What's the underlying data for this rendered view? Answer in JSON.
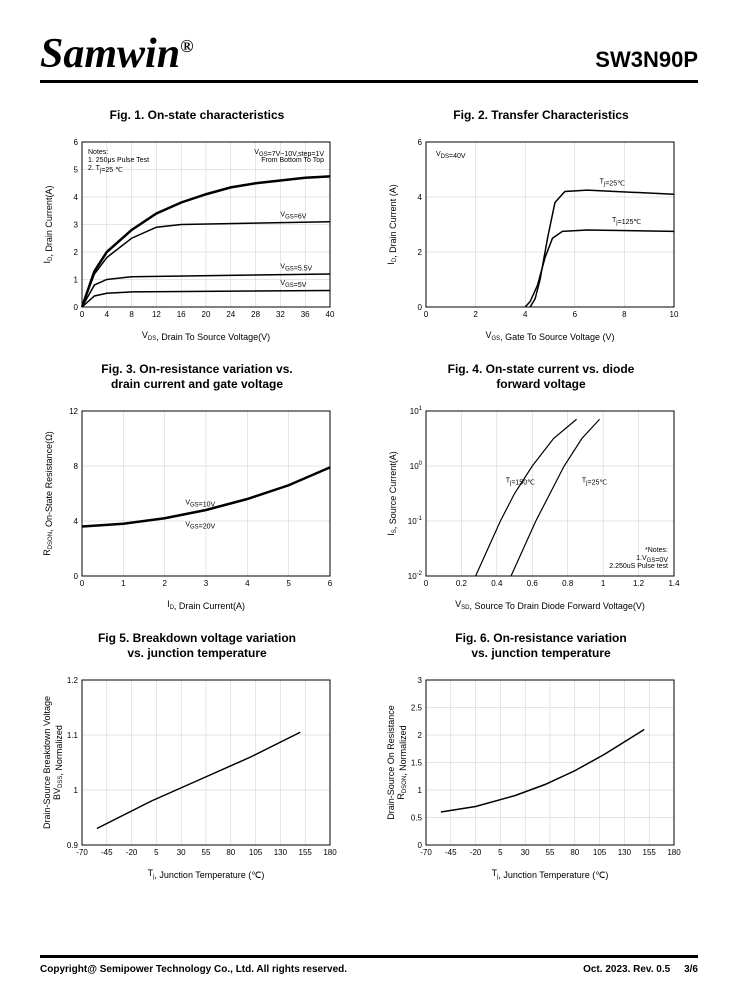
{
  "header": {
    "brand": "Samwin",
    "reg": "®",
    "part": "SW3N90P"
  },
  "footer": {
    "left": "Copyright@ Semipower Technology Co., Ltd. All rights reserved.",
    "date": "Oct. 2023. Rev. 0.5",
    "page": "3/6"
  },
  "figs": [
    {
      "title": "Fig. 1. On-state characteristics",
      "xlabel": "V_DS, Drain To Source Voltage(V)",
      "ylabel": "I_D, Drain Current(A)",
      "xlim": [
        0,
        40
      ],
      "ylim": [
        0,
        6
      ],
      "xticks": [
        0,
        4,
        8,
        12,
        16,
        20,
        24,
        28,
        32,
        36,
        40
      ],
      "yticks": [
        0,
        1,
        2,
        3,
        4,
        5,
        6
      ],
      "grid_color": "#cccccc",
      "border_color": "#000000",
      "bg": "#ffffff",
      "line_width": 1.5,
      "notes": "Notes:\n1. 250μs Pulse Test\n2. T_j=25 ℃",
      "ann_top": "V_GS=7V~10V,step=1V\nFrom Bottom To Top",
      "series": [
        {
          "label": "V_GS=5V",
          "color": "#000",
          "data": [
            [
              0,
              0
            ],
            [
              2,
              0.4
            ],
            [
              4,
              0.5
            ],
            [
              8,
              0.55
            ],
            [
              40,
              0.6
            ]
          ]
        },
        {
          "label": "V_GS=5.5V",
          "color": "#000",
          "data": [
            [
              0,
              0
            ],
            [
              2,
              0.8
            ],
            [
              4,
              1.0
            ],
            [
              8,
              1.1
            ],
            [
              40,
              1.2
            ]
          ]
        },
        {
          "label": "V_GS=6V",
          "color": "#000",
          "data": [
            [
              0,
              0
            ],
            [
              2,
              1.2
            ],
            [
              4,
              1.8
            ],
            [
              8,
              2.5
            ],
            [
              12,
              2.9
            ],
            [
              16,
              3.0
            ],
            [
              40,
              3.1
            ]
          ]
        },
        {
          "label": "top",
          "color": "#000",
          "width": 2.5,
          "data": [
            [
              0,
              0
            ],
            [
              2,
              1.3
            ],
            [
              4,
              2.0
            ],
            [
              8,
              2.8
            ],
            [
              12,
              3.4
            ],
            [
              16,
              3.8
            ],
            [
              20,
              4.1
            ],
            [
              24,
              4.35
            ],
            [
              28,
              4.5
            ],
            [
              32,
              4.6
            ],
            [
              36,
              4.7
            ],
            [
              40,
              4.75
            ]
          ]
        }
      ],
      "curve_labels": [
        {
          "text": "V_GS=6V",
          "x": 32,
          "y": 3.3
        },
        {
          "text": "V_GS=5.5V",
          "x": 32,
          "y": 1.4
        },
        {
          "text": "V_GS=5V",
          "x": 32,
          "y": 0.8
        }
      ]
    },
    {
      "title": "Fig. 2. Transfer Characteristics",
      "xlabel": "V_GS,  Gate To Source Voltage (V)",
      "ylabel": "I_D,  Drain Current (A)",
      "xlim": [
        0,
        10
      ],
      "ylim": [
        0,
        6
      ],
      "xticks": [
        0,
        2,
        4,
        6,
        8,
        10
      ],
      "yticks": [
        0,
        2,
        4,
        6
      ],
      "grid_color": "#cccccc",
      "border_color": "#000000",
      "line_width": 1.5,
      "ann_tl": "V_DS=40V",
      "series": [
        {
          "label": "T_j=25℃",
          "color": "#000",
          "data": [
            [
              4.2,
              0
            ],
            [
              4.4,
              0.3
            ],
            [
              4.6,
              1.0
            ],
            [
              4.9,
              2.5
            ],
            [
              5.2,
              3.8
            ],
            [
              5.6,
              4.2
            ],
            [
              6.5,
              4.25
            ],
            [
              10,
              4.1
            ]
          ]
        },
        {
          "label": "T_j=125℃",
          "color": "#000",
          "data": [
            [
              4.0,
              0
            ],
            [
              4.2,
              0.2
            ],
            [
              4.5,
              0.8
            ],
            [
              4.8,
              1.8
            ],
            [
              5.1,
              2.5
            ],
            [
              5.5,
              2.75
            ],
            [
              6.5,
              2.8
            ],
            [
              10,
              2.75
            ]
          ]
        }
      ],
      "curve_labels": [
        {
          "text": "T_j=25℃",
          "x": 7,
          "y": 4.5
        },
        {
          "text": "T_j=125℃",
          "x": 7.5,
          "y": 3.1
        }
      ]
    },
    {
      "title": "Fig. 3. On-resistance variation vs.\ndrain current and gate voltage",
      "xlabel": "I_D, Drain Current(A)",
      "ylabel": "R_DSON, On-State Resistance(Ω)",
      "xlim": [
        0,
        6
      ],
      "ylim": [
        0,
        12
      ],
      "xticks": [
        0,
        1,
        2,
        3,
        4,
        5,
        6
      ],
      "yticks": [
        0.0,
        4.0,
        8.0,
        12.0
      ],
      "grid_color": "#cccccc",
      "border_color": "#000000",
      "line_width": 2.5,
      "series": [
        {
          "label": "band",
          "color": "#000",
          "data": [
            [
              0,
              3.6
            ],
            [
              1,
              3.8
            ],
            [
              2,
              4.2
            ],
            [
              3,
              4.8
            ],
            [
              4,
              5.6
            ],
            [
              5,
              6.6
            ],
            [
              6,
              7.9
            ]
          ]
        }
      ],
      "curve_labels": [
        {
          "text": "V_GS=10V",
          "x": 2.5,
          "y": 5.2
        },
        {
          "text": "V_GS=20V",
          "x": 2.5,
          "y": 3.6
        }
      ]
    },
    {
      "title": "Fig. 4. On-state current vs. diode\nforward voltage",
      "xlabel": "V_SD, Source To Drain Diode Forward Voltage(V)",
      "ylabel": "I_S, Source Current(A)",
      "xlim": [
        0,
        1.4
      ],
      "ylim_log": [
        -2,
        1
      ],
      "xticks": [
        0,
        0.2,
        0.4,
        0.6,
        0.8,
        1.0,
        1.2,
        1.4
      ],
      "yticks_log": [
        "10^-2",
        "10^-1",
        "10^0",
        "10^1"
      ],
      "grid_color": "#cccccc",
      "border_color": "#000000",
      "line_width": 1.2,
      "notes_br": "*Notes:\n1.V_GS=0V\n2.250uS Pulse test",
      "series": [
        {
          "label": "T_j=150℃",
          "color": "#000",
          "data_log": [
            [
              0.28,
              -2
            ],
            [
              0.35,
              -1.5
            ],
            [
              0.42,
              -1
            ],
            [
              0.5,
              -0.5
            ],
            [
              0.6,
              0
            ],
            [
              0.72,
              0.5
            ],
            [
              0.85,
              0.85
            ]
          ]
        },
        {
          "label": "T_j=25℃",
          "color": "#000",
          "data_log": [
            [
              0.48,
              -2
            ],
            [
              0.55,
              -1.5
            ],
            [
              0.62,
              -1
            ],
            [
              0.7,
              -0.5
            ],
            [
              0.78,
              0
            ],
            [
              0.88,
              0.5
            ],
            [
              0.98,
              0.85
            ]
          ]
        }
      ],
      "curve_labels": [
        {
          "text": "T_j=150℃",
          "x": 0.45,
          "y_log": -0.3
        },
        {
          "text": "T_j=25℃",
          "x": 0.88,
          "y_log": -0.3
        }
      ]
    },
    {
      "title": "Fig 5. Breakdown voltage variation\nvs. junction temperature",
      "xlabel": "T_j, Junction Temperature (℃)",
      "ylabel": "BV_DSS, Normalized\nDrain-Source Breakdown Voltage",
      "xlim": [
        -70,
        180
      ],
      "ylim": [
        0.9,
        1.2
      ],
      "xticks": [
        -70,
        -45,
        -20,
        5,
        30,
        55,
        80,
        105,
        130,
        155,
        180
      ],
      "yticks": [
        0.9,
        1.0,
        1.1,
        1.2
      ],
      "grid_color": "#cccccc",
      "border_color": "#000000",
      "line_width": 1.5,
      "series": [
        {
          "color": "#000",
          "data": [
            [
              -55,
              0.93
            ],
            [
              0,
              0.98
            ],
            [
              50,
              1.02
            ],
            [
              100,
              1.06
            ],
            [
              150,
              1.105
            ]
          ]
        }
      ]
    },
    {
      "title": "Fig. 6. On-resistance variation\nvs. junction temperature",
      "xlabel": "T_j, Junction Temperature (℃)",
      "ylabel": "R_DSON, Normalized\nDrain-Source On Resistance",
      "xlim": [
        -70,
        180
      ],
      "ylim": [
        0,
        3
      ],
      "xticks": [
        -70,
        -45,
        -20,
        5,
        30,
        55,
        80,
        105,
        130,
        155,
        180
      ],
      "yticks": [
        0.0,
        0.5,
        1.0,
        1.5,
        2.0,
        2.5,
        3.0
      ],
      "grid_color": "#cccccc",
      "border_color": "#000000",
      "line_width": 1.5,
      "series": [
        {
          "color": "#000",
          "data": [
            [
              -55,
              0.6
            ],
            [
              -20,
              0.7
            ],
            [
              20,
              0.9
            ],
            [
              50,
              1.1
            ],
            [
              80,
              1.35
            ],
            [
              110,
              1.65
            ],
            [
              150,
              2.1
            ]
          ]
        }
      ]
    }
  ]
}
